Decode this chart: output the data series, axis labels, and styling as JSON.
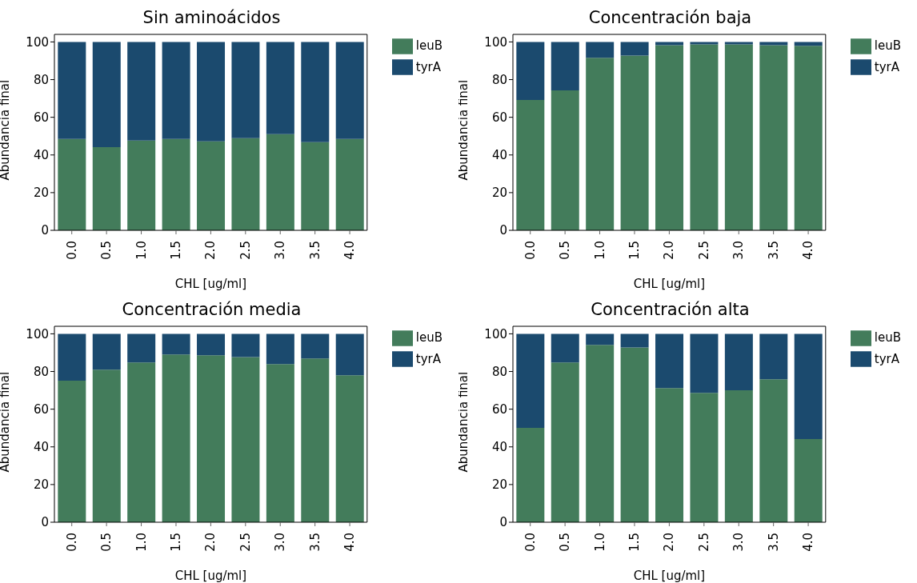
{
  "chart_data": [
    {
      "type": "bar",
      "title": "Sin aminoácidos",
      "xlabel": "CHL [ug/ml]",
      "ylabel": "Abundancia final",
      "categories": [
        "0.0",
        "0.5",
        "1.0",
        "1.5",
        "2.0",
        "2.5",
        "3.0",
        "3.5",
        "4.0"
      ],
      "stacked": true,
      "legend": "right",
      "ylim": [
        0,
        104
      ],
      "yticks": [
        0,
        20,
        40,
        60,
        80,
        100
      ],
      "series": [
        {
          "name": "leuB",
          "color": "#437c5b",
          "values": [
            48.5,
            44.2,
            47.6,
            48.5,
            47.2,
            48.9,
            51.0,
            46.8,
            48.5
          ]
        },
        {
          "name": "tyrA",
          "color": "#1b4a6e",
          "values": [
            51.5,
            55.8,
            52.4,
            51.5,
            52.8,
            51.1,
            49.0,
            53.2,
            51.5
          ]
        }
      ]
    },
    {
      "type": "bar",
      "title": "Concentración baja",
      "xlabel": "CHL [ug/ml]",
      "ylabel": "Abundancia final",
      "categories": [
        "0.0",
        "0.5",
        "1.0",
        "1.5",
        "2.0",
        "2.5",
        "3.0",
        "3.5",
        "4.0"
      ],
      "stacked": true,
      "legend": "right",
      "ylim": [
        0,
        104
      ],
      "yticks": [
        0,
        20,
        40,
        60,
        80,
        100
      ],
      "series": [
        {
          "name": "leuB",
          "color": "#437c5b",
          "values": [
            69.2,
            74.3,
            91.6,
            92.8,
            98.3,
            98.7,
            98.7,
            98.3,
            97.9
          ]
        },
        {
          "name": "tyrA",
          "color": "#1b4a6e",
          "values": [
            30.8,
            25.7,
            8.4,
            7.2,
            1.7,
            1.3,
            1.3,
            1.7,
            2.1
          ]
        }
      ]
    },
    {
      "type": "bar",
      "title": "Concentración media",
      "xlabel": "CHL [ug/ml]",
      "ylabel": "Abundancia final",
      "categories": [
        "0.0",
        "0.5",
        "1.0",
        "1.5",
        "2.0",
        "2.5",
        "3.0",
        "3.5",
        "4.0"
      ],
      "stacked": true,
      "legend": "right",
      "ylim": [
        0,
        104
      ],
      "yticks": [
        0,
        20,
        40,
        60,
        80,
        100
      ],
      "series": [
        {
          "name": "leuB",
          "color": "#437c5b",
          "values": [
            75.1,
            81.0,
            84.8,
            89.0,
            88.6,
            87.7,
            83.9,
            86.9,
            78.0
          ]
        },
        {
          "name": "tyrA",
          "color": "#1b4a6e",
          "values": [
            24.9,
            19.0,
            15.2,
            11.0,
            11.4,
            12.3,
            16.1,
            13.1,
            22.0
          ]
        }
      ]
    },
    {
      "type": "bar",
      "title": "Concentración alta",
      "xlabel": "CHL [ug/ml]",
      "ylabel": "Abundancia final",
      "categories": [
        "0.0",
        "0.5",
        "1.0",
        "1.5",
        "2.0",
        "2.5",
        "3.0",
        "3.5",
        "4.0"
      ],
      "stacked": true,
      "legend": "right",
      "ylim": [
        0,
        104
      ],
      "yticks": [
        0,
        20,
        40,
        60,
        80,
        100
      ],
      "series": [
        {
          "name": "leuB",
          "color": "#437c5b",
          "values": [
            50.1,
            84.8,
            94.1,
            92.8,
            71.2,
            68.7,
            70.0,
            75.9,
            44.1
          ]
        },
        {
          "name": "tyrA",
          "color": "#1b4a6e",
          "values": [
            49.9,
            15.2,
            5.9,
            7.2,
            28.8,
            31.3,
            30.0,
            24.1,
            55.9
          ]
        }
      ]
    }
  ]
}
